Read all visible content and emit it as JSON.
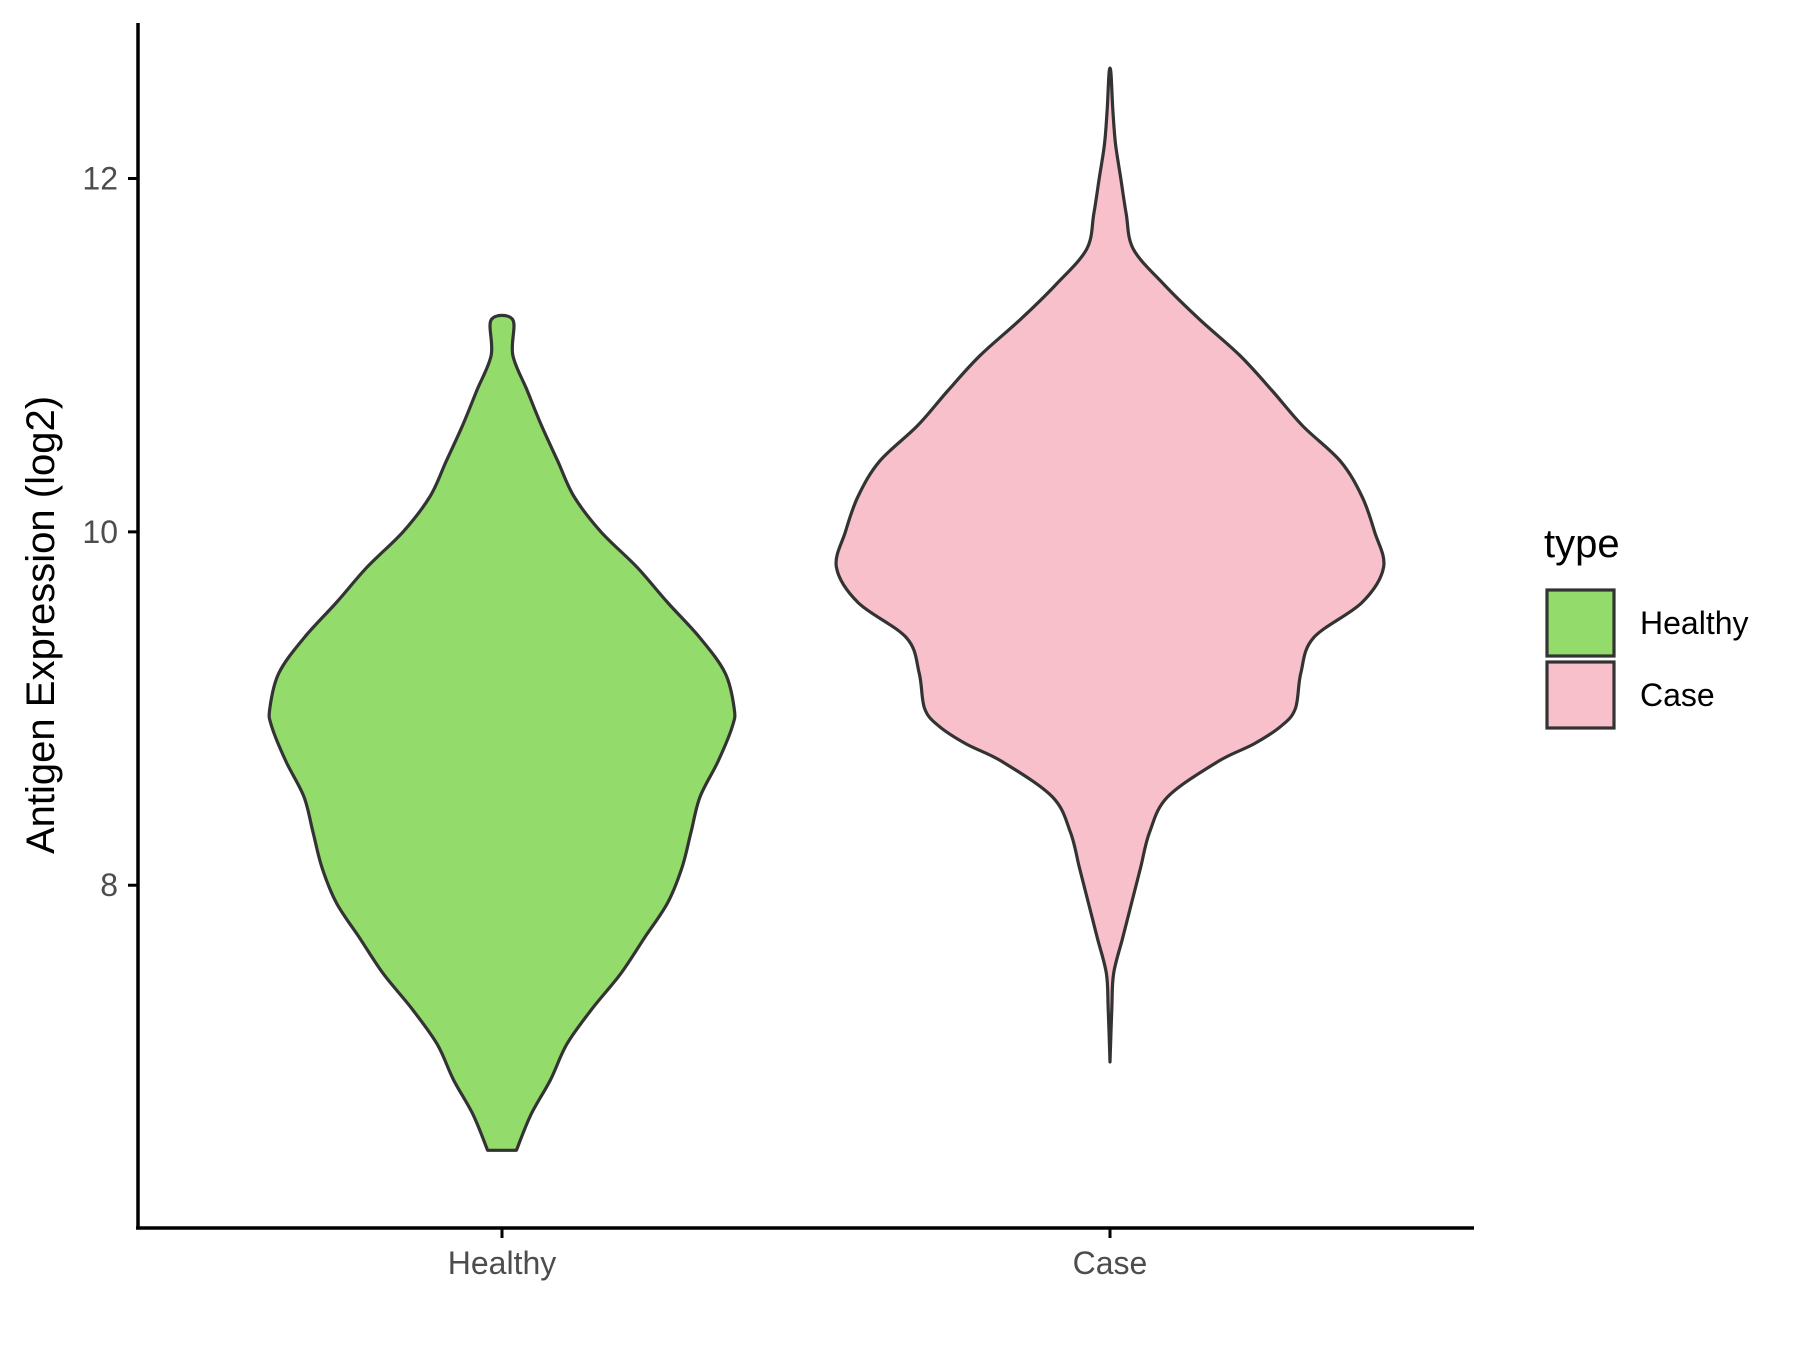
{
  "chart_data": {
    "type": "violin",
    "xlabel": "",
    "ylabel": "Antigen Expression (log2)",
    "categories": [
      "Healthy",
      "Case"
    ],
    "ylim": [
      6.06,
      12.88
    ],
    "yticks": [
      8,
      10,
      12
    ],
    "grid": false,
    "legend": {
      "title": "type",
      "position": "right",
      "entries": [
        {
          "label": "Healthy",
          "color": "#93dc6b"
        },
        {
          "label": "Case",
          "color": "#f7c0cb"
        }
      ]
    },
    "series": [
      {
        "name": "Healthy",
        "color": "#93dc6b",
        "min": 6.5,
        "max": 11.2,
        "profile": [
          [
            6.5,
            0.08
          ],
          [
            6.7,
            0.16
          ],
          [
            6.9,
            0.27
          ],
          [
            7.1,
            0.36
          ],
          [
            7.3,
            0.5
          ],
          [
            7.5,
            0.66
          ],
          [
            7.7,
            0.79
          ],
          [
            7.9,
            0.92
          ],
          [
            8.1,
            1.0
          ],
          [
            8.3,
            1.05
          ],
          [
            8.5,
            1.1
          ],
          [
            8.7,
            1.2
          ],
          [
            8.9,
            1.28
          ],
          [
            9.0,
            1.29
          ],
          [
            9.2,
            1.24
          ],
          [
            9.4,
            1.1
          ],
          [
            9.6,
            0.92
          ],
          [
            9.8,
            0.75
          ],
          [
            10.0,
            0.55
          ],
          [
            10.2,
            0.4
          ],
          [
            10.4,
            0.31
          ],
          [
            10.6,
            0.22
          ],
          [
            10.8,
            0.14
          ],
          [
            11.0,
            0.06
          ],
          [
            11.2,
            0.06
          ]
        ]
      },
      {
        "name": "Case",
        "color": "#f7c0cb",
        "min": 7.0,
        "max": 12.6,
        "profile": [
          [
            7.0,
            0.0
          ],
          [
            7.3,
            0.01
          ],
          [
            7.5,
            0.02
          ],
          [
            7.7,
            0.07
          ],
          [
            7.9,
            0.12
          ],
          [
            8.1,
            0.17
          ],
          [
            8.3,
            0.22
          ],
          [
            8.5,
            0.32
          ],
          [
            8.7,
            0.6
          ],
          [
            8.8,
            0.8
          ],
          [
            8.9,
            0.95
          ],
          [
            9.0,
            1.03
          ],
          [
            9.2,
            1.06
          ],
          [
            9.4,
            1.13
          ],
          [
            9.6,
            1.4
          ],
          [
            9.8,
            1.52
          ],
          [
            10.0,
            1.47
          ],
          [
            10.2,
            1.4
          ],
          [
            10.4,
            1.28
          ],
          [
            10.6,
            1.07
          ],
          [
            10.8,
            0.9
          ],
          [
            11.0,
            0.72
          ],
          [
            11.2,
            0.5
          ],
          [
            11.4,
            0.3
          ],
          [
            11.6,
            0.13
          ],
          [
            11.8,
            0.09
          ],
          [
            12.0,
            0.06
          ],
          [
            12.2,
            0.03
          ],
          [
            12.4,
            0.015
          ],
          [
            12.6,
            0.005
          ]
        ]
      }
    ]
  }
}
